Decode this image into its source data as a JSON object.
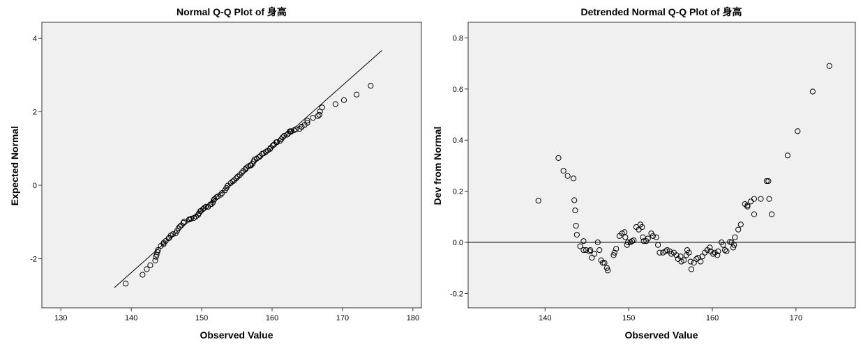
{
  "chart_data": [
    {
      "type": "scatter",
      "title": "Normal Q-Q Plot of 身高",
      "xlabel": "Observed Value",
      "ylabel": "Expected Normal",
      "xlim": [
        127.3,
        181.2
      ],
      "ylim": [
        -3.34,
        4.44
      ],
      "xticks": [
        130,
        140,
        150,
        160,
        170,
        180
      ],
      "yticks": [
        -2,
        0,
        2,
        4
      ],
      "reference_line": {
        "mean": 154.0,
        "sd": 5.88,
        "x_from": 137.6,
        "x_to": 175.6
      },
      "points_source": "detrended"
    },
    {
      "type": "scatter",
      "title": "Detrended Normal Q-Q Plot of 身高",
      "xlabel": "Observed Value",
      "ylabel": "Dev from Normal",
      "xlim": [
        130.8,
        177.1
      ],
      "ylim": [
        -0.256,
        0.861
      ],
      "xticks": [
        140,
        150,
        160,
        170
      ],
      "yticks": [
        -0.2,
        0.0,
        0.2,
        0.4,
        0.6,
        0.8
      ],
      "reference_line": {
        "y": 0
      },
      "points": [
        [
          139.2,
          0.163
        ],
        [
          141.6,
          0.33
        ],
        [
          142.2,
          0.28
        ],
        [
          142.7,
          0.26
        ],
        [
          143.4,
          0.25
        ],
        [
          143.5,
          0.165
        ],
        [
          143.6,
          0.125
        ],
        [
          143.7,
          0.065
        ],
        [
          143.8,
          0.03
        ],
        [
          144.2,
          -0.015
        ],
        [
          144.6,
          0.005
        ],
        [
          144.6,
          -0.03
        ],
        [
          144.9,
          -0.03
        ],
        [
          145.3,
          -0.035
        ],
        [
          145.4,
          -0.03
        ],
        [
          145.6,
          -0.06
        ],
        [
          145.9,
          -0.045
        ],
        [
          146.3,
          0.0
        ],
        [
          146.5,
          -0.03
        ],
        [
          146.7,
          -0.07
        ],
        [
          146.9,
          -0.08
        ],
        [
          147.1,
          -0.08
        ],
        [
          147.4,
          -0.1
        ],
        [
          147.5,
          -0.11
        ],
        [
          148.2,
          -0.05
        ],
        [
          148.3,
          -0.04
        ],
        [
          148.5,
          -0.025
        ],
        [
          148.9,
          0.025
        ],
        [
          149.2,
          0.035
        ],
        [
          149.5,
          0.04
        ],
        [
          149.6,
          0.02
        ],
        [
          149.8,
          -0.01
        ],
        [
          149.9,
          0.0
        ],
        [
          150.2,
          0.0
        ],
        [
          150.4,
          0.005
        ],
        [
          150.6,
          0.008
        ],
        [
          150.9,
          0.06
        ],
        [
          151.2,
          0.05
        ],
        [
          151.4,
          0.07
        ],
        [
          151.6,
          0.06
        ],
        [
          151.7,
          0.02
        ],
        [
          151.8,
          0.005
        ],
        [
          152.1,
          0.005
        ],
        [
          152.3,
          0.015
        ],
        [
          152.7,
          0.035
        ],
        [
          152.9,
          0.025
        ],
        [
          153.3,
          0.02
        ],
        [
          153.5,
          -0.01
        ],
        [
          153.7,
          -0.04
        ],
        [
          154.1,
          -0.04
        ],
        [
          154.4,
          -0.035
        ],
        [
          154.6,
          -0.03
        ],
        [
          154.9,
          -0.035
        ],
        [
          155.1,
          -0.045
        ],
        [
          155.4,
          -0.04
        ],
        [
          155.7,
          -0.05
        ],
        [
          155.9,
          -0.065
        ],
        [
          156.2,
          -0.055
        ],
        [
          156.3,
          -0.075
        ],
        [
          156.6,
          -0.07
        ],
        [
          156.9,
          -0.05
        ],
        [
          157.0,
          -0.03
        ],
        [
          157.2,
          -0.04
        ],
        [
          157.4,
          -0.075
        ],
        [
          157.5,
          -0.105
        ],
        [
          157.8,
          -0.08
        ],
        [
          158.1,
          -0.065
        ],
        [
          158.3,
          -0.06
        ],
        [
          158.6,
          -0.075
        ],
        [
          158.8,
          -0.055
        ],
        [
          159.1,
          -0.04
        ],
        [
          159.4,
          -0.03
        ],
        [
          159.7,
          -0.02
        ],
        [
          159.8,
          -0.035
        ],
        [
          160.1,
          -0.045
        ],
        [
          160.3,
          -0.04
        ],
        [
          160.6,
          -0.05
        ],
        [
          160.7,
          -0.035
        ],
        [
          161.1,
          0.0
        ],
        [
          161.3,
          -0.01
        ],
        [
          161.5,
          -0.03
        ],
        [
          161.7,
          -0.035
        ],
        [
          162.1,
          0.002
        ],
        [
          162.3,
          0.0
        ],
        [
          162.5,
          -0.02
        ],
        [
          162.6,
          -0.01
        ],
        [
          162.7,
          0.02
        ],
        [
          163.1,
          0.05
        ],
        [
          163.4,
          0.07
        ],
        [
          163.9,
          0.15
        ],
        [
          164.2,
          0.14
        ],
        [
          164.2,
          0.145
        ],
        [
          164.6,
          0.16
        ],
        [
          165.0,
          0.17
        ],
        [
          165.0,
          0.11
        ],
        [
          165.8,
          0.17
        ],
        [
          166.5,
          0.24
        ],
        [
          166.7,
          0.24
        ],
        [
          166.8,
          0.17
        ],
        [
          167.1,
          0.11
        ],
        [
          169.0,
          0.34
        ],
        [
          170.2,
          0.435
        ],
        [
          172.0,
          0.59
        ],
        [
          174.0,
          0.69
        ]
      ]
    }
  ]
}
